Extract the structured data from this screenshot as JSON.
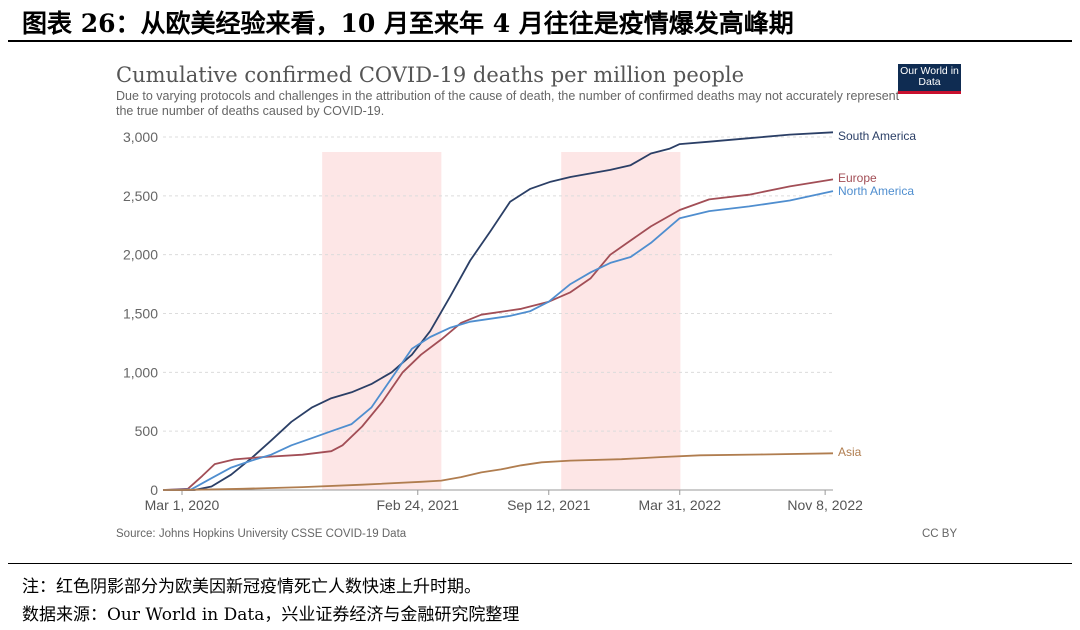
{
  "figure": {
    "title": "图表 26：从欧美经验来看，10 月至来年 4 月往往是疫情爆发高峰期",
    "note": "注：红色阴影部分为欧美因新冠疫情死亡人数快速上升时期。",
    "data_source": "数据来源：Our World in Data，兴业证券经济与金融研究院整理"
  },
  "chart_data": {
    "type": "line",
    "title": "Cumulative confirmed COVID-19 deaths per million people",
    "subtitle": "Due to varying protocols and challenges in the attribution of the cause of death, the number of confirmed deaths may not accurately represent the true number of deaths caused by COVID-19.",
    "source": "Source: Johns Hopkins University CSSE COVID-19 Data",
    "license": "CC BY",
    "logo_text": "Our World in Data",
    "x_range": [
      "2020-02-01",
      "2022-11-20"
    ],
    "x_ticks": [
      {
        "date": "2020-03-01",
        "label": "Mar 1, 2020"
      },
      {
        "date": "2021-02-24",
        "label": "Feb 24, 2021"
      },
      {
        "date": "2021-09-12",
        "label": "Sep 12, 2021"
      },
      {
        "date": "2022-03-31",
        "label": "Mar 31, 2022"
      },
      {
        "date": "2022-11-08",
        "label": "Nov 8, 2022"
      }
    ],
    "ylim": [
      0,
      3000
    ],
    "y_ticks": [
      {
        "value": 0,
        "label": "0"
      },
      {
        "value": 500,
        "label": "500"
      },
      {
        "value": 1000,
        "label": "1,000"
      },
      {
        "value": 1500,
        "label": "1,500"
      },
      {
        "value": 2000,
        "label": "2,000"
      },
      {
        "value": 2500,
        "label": "2,500"
      },
      {
        "value": 3000,
        "label": "3,000"
      }
    ],
    "grid": "horizontal",
    "shaded_periods": [
      {
        "start": "2020-10-01",
        "end": "2021-04-01",
        "color": "#fde6e6"
      },
      {
        "start": "2021-10-01",
        "end": "2022-04-01",
        "color": "#fde6e6"
      }
    ],
    "series": [
      {
        "name": "South America",
        "color": "#2b3f66",
        "points": [
          [
            "2020-02-01",
            0
          ],
          [
            "2020-03-20",
            0
          ],
          [
            "2020-04-15",
            30
          ],
          [
            "2020-05-15",
            130
          ],
          [
            "2020-06-15",
            270
          ],
          [
            "2020-07-15",
            420
          ],
          [
            "2020-08-15",
            580
          ],
          [
            "2020-09-15",
            700
          ],
          [
            "2020-10-15",
            780
          ],
          [
            "2020-11-15",
            830
          ],
          [
            "2020-12-15",
            900
          ],
          [
            "2021-01-15",
            1000
          ],
          [
            "2021-02-15",
            1150
          ],
          [
            "2021-03-15",
            1350
          ],
          [
            "2021-04-15",
            1650
          ],
          [
            "2021-05-15",
            1950
          ],
          [
            "2021-06-15",
            2200
          ],
          [
            "2021-07-15",
            2450
          ],
          [
            "2021-08-15",
            2560
          ],
          [
            "2021-09-15",
            2620
          ],
          [
            "2021-10-15",
            2660
          ],
          [
            "2021-12-15",
            2720
          ],
          [
            "2022-01-15",
            2760
          ],
          [
            "2022-02-15",
            2860
          ],
          [
            "2022-03-15",
            2900
          ],
          [
            "2022-03-31",
            2940
          ],
          [
            "2022-05-15",
            2960
          ],
          [
            "2022-07-15",
            2990
          ],
          [
            "2022-09-15",
            3020
          ],
          [
            "2022-11-20",
            3040
          ]
        ]
      },
      {
        "name": "Europe",
        "color": "#a24e56",
        "points": [
          [
            "2020-02-01",
            0
          ],
          [
            "2020-03-10",
            10
          ],
          [
            "2020-04-01",
            120
          ],
          [
            "2020-04-20",
            220
          ],
          [
            "2020-05-20",
            260
          ],
          [
            "2020-07-01",
            280
          ],
          [
            "2020-09-01",
            300
          ],
          [
            "2020-10-15",
            330
          ],
          [
            "2020-11-01",
            380
          ],
          [
            "2020-12-01",
            540
          ],
          [
            "2021-01-01",
            750
          ],
          [
            "2021-02-01",
            1000
          ],
          [
            "2021-03-01",
            1150
          ],
          [
            "2021-04-01",
            1280
          ],
          [
            "2021-05-01",
            1420
          ],
          [
            "2021-06-01",
            1490
          ],
          [
            "2021-08-01",
            1540
          ],
          [
            "2021-09-12",
            1600
          ],
          [
            "2021-10-15",
            1680
          ],
          [
            "2021-11-15",
            1800
          ],
          [
            "2021-12-15",
            2000
          ],
          [
            "2022-01-15",
            2120
          ],
          [
            "2022-02-15",
            2240
          ],
          [
            "2022-03-31",
            2380
          ],
          [
            "2022-05-15",
            2470
          ],
          [
            "2022-07-15",
            2510
          ],
          [
            "2022-09-15",
            2580
          ],
          [
            "2022-11-20",
            2640
          ]
        ]
      },
      {
        "name": "North America",
        "color": "#4f8ecf",
        "points": [
          [
            "2020-02-01",
            0
          ],
          [
            "2020-03-15",
            5
          ],
          [
            "2020-04-15",
            100
          ],
          [
            "2020-05-15",
            190
          ],
          [
            "2020-06-15",
            250
          ],
          [
            "2020-07-15",
            300
          ],
          [
            "2020-08-15",
            380
          ],
          [
            "2020-09-15",
            440
          ],
          [
            "2020-10-15",
            500
          ],
          [
            "2020-11-15",
            560
          ],
          [
            "2020-12-15",
            700
          ],
          [
            "2021-01-15",
            950
          ],
          [
            "2021-02-15",
            1200
          ],
          [
            "2021-03-15",
            1300
          ],
          [
            "2021-04-15",
            1380
          ],
          [
            "2021-05-15",
            1430
          ],
          [
            "2021-07-15",
            1480
          ],
          [
            "2021-08-15",
            1520
          ],
          [
            "2021-09-12",
            1600
          ],
          [
            "2021-10-15",
            1750
          ],
          [
            "2021-11-15",
            1850
          ],
          [
            "2021-12-15",
            1930
          ],
          [
            "2022-01-15",
            1980
          ],
          [
            "2022-02-15",
            2100
          ],
          [
            "2022-03-31",
            2310
          ],
          [
            "2022-05-15",
            2370
          ],
          [
            "2022-07-15",
            2410
          ],
          [
            "2022-09-15",
            2460
          ],
          [
            "2022-11-20",
            2540
          ]
        ]
      },
      {
        "name": "Asia",
        "color": "#b07d4f",
        "points": [
          [
            "2020-02-01",
            0
          ],
          [
            "2020-03-01",
            0
          ],
          [
            "2020-06-01",
            10
          ],
          [
            "2020-09-01",
            25
          ],
          [
            "2020-12-01",
            45
          ],
          [
            "2021-03-01",
            70
          ],
          [
            "2021-04-01",
            80
          ],
          [
            "2021-05-01",
            110
          ],
          [
            "2021-06-01",
            150
          ],
          [
            "2021-07-01",
            175
          ],
          [
            "2021-08-01",
            210
          ],
          [
            "2021-09-01",
            235
          ],
          [
            "2021-10-15",
            250
          ],
          [
            "2022-01-01",
            262
          ],
          [
            "2022-03-01",
            280
          ],
          [
            "2022-05-01",
            295
          ],
          [
            "2022-08-01",
            302
          ],
          [
            "2022-11-20",
            312
          ]
        ]
      }
    ]
  }
}
